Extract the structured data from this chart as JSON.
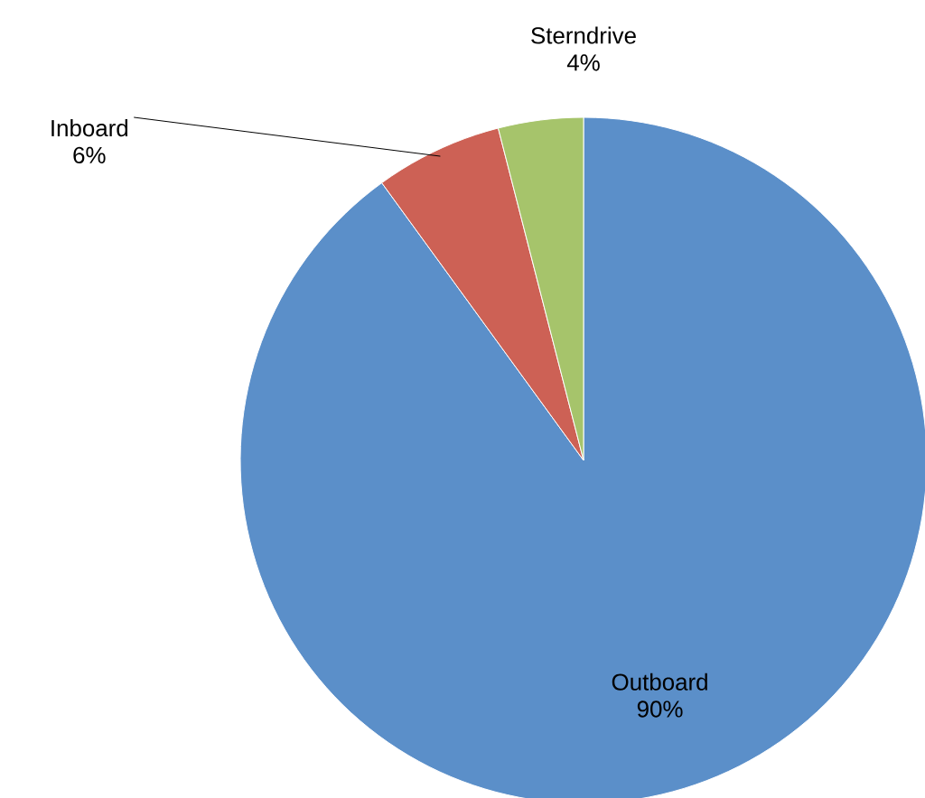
{
  "chart_data": {
    "type": "pie",
    "categories": [
      "Outboard",
      "Inboard",
      "Sterndrive"
    ],
    "values": [
      90,
      6,
      4
    ],
    "value_labels": [
      "90%",
      "6%",
      "4%"
    ],
    "colors": [
      "#5b8fc9",
      "#cd6155",
      "#a6c46b"
    ]
  }
}
